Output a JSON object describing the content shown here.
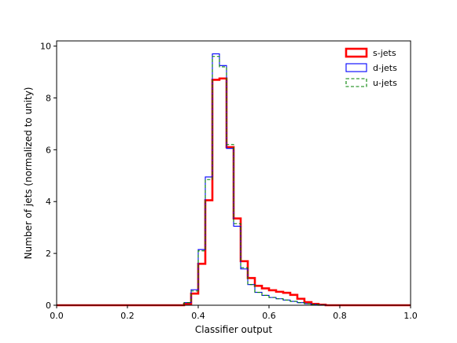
{
  "chart_data": {
    "type": "histogram",
    "xlabel": "Classifier output",
    "ylabel": "Number of jets (normalized to unity)",
    "xlim": [
      0.0,
      1.0
    ],
    "ylim": [
      0,
      10.2
    ],
    "xticks": [
      "0.0",
      "0.2",
      "0.4",
      "0.6",
      "0.8",
      "1.0"
    ],
    "yticks": [
      "0",
      "2",
      "4",
      "6",
      "8",
      "10"
    ],
    "bin_width": 0.02,
    "bin_start": 0.36,
    "legend_position": "top-right",
    "series": [
      {
        "name": "s-jets",
        "style": "solid-thick",
        "color": "#ff0000",
        "values": [
          0.05,
          0.45,
          1.6,
          4.05,
          8.7,
          8.75,
          6.1,
          3.35,
          1.7,
          1.05,
          0.75,
          0.65,
          0.58,
          0.52,
          0.48,
          0.4,
          0.25,
          0.12,
          0.05,
          0.02,
          0.0,
          0.0
        ]
      },
      {
        "name": "d-jets",
        "style": "solid",
        "color": "#0000ff",
        "values": [
          0.1,
          0.6,
          2.15,
          4.95,
          9.7,
          9.25,
          6.05,
          3.05,
          1.4,
          0.8,
          0.5,
          0.38,
          0.3,
          0.25,
          0.2,
          0.15,
          0.1,
          0.06,
          0.03,
          0.01,
          0.0,
          0.0
        ]
      },
      {
        "name": "u-jets",
        "style": "dashed",
        "color": "#008000",
        "values": [
          0.1,
          0.55,
          2.1,
          4.85,
          9.6,
          9.2,
          6.2,
          3.15,
          1.45,
          0.8,
          0.5,
          0.38,
          0.3,
          0.25,
          0.2,
          0.15,
          0.1,
          0.06,
          0.03,
          0.01,
          0.0,
          0.0
        ]
      }
    ]
  }
}
